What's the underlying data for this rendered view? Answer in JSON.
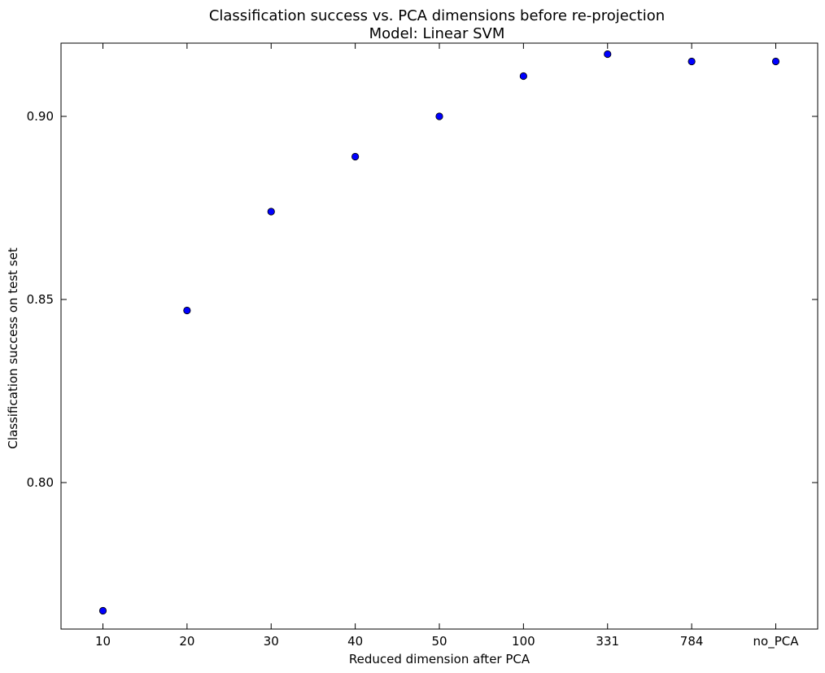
{
  "chart_data": {
    "type": "scatter",
    "title": "Classification success vs. PCA dimensions before re-projection",
    "subtitle": "Model: Linear SVM",
    "xlabel": "Reduced dimension after PCA",
    "ylabel": "Classification success on test set",
    "categories": [
      "10",
      "20",
      "30",
      "40",
      "50",
      "100",
      "331",
      "784",
      "no_PCA"
    ],
    "values": [
      0.765,
      0.847,
      0.874,
      0.889,
      0.9,
      0.911,
      0.917,
      0.915,
      0.915
    ],
    "ylim": [
      0.76,
      0.92
    ],
    "yticks": [
      "0.80",
      "0.85",
      "0.90"
    ],
    "ytick_values": [
      0.8,
      0.85,
      0.9
    ],
    "grid": false,
    "marker_color": "#0000ff"
  }
}
